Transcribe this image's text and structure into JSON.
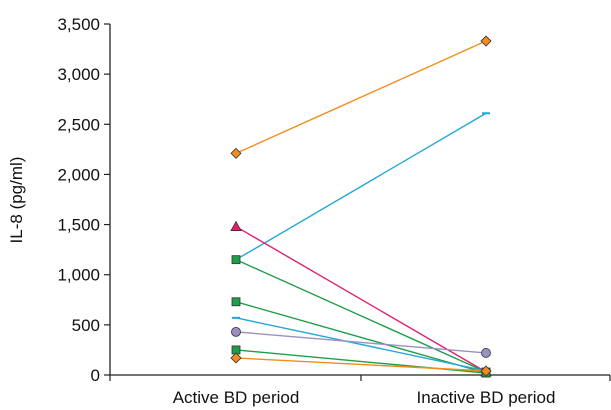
{
  "chart_data": {
    "type": "line",
    "title": "",
    "xlabel": "",
    "ylabel": "IL-8 (pg/ml)",
    "categories": [
      "Active BD period",
      "Inactive BD period"
    ],
    "ylim": [
      0,
      3500
    ],
    "yticks": [
      0,
      500,
      1000,
      1500,
      2000,
      2500,
      3000,
      3500
    ],
    "ytick_labels": [
      "0",
      "500",
      "1,000",
      "1,500",
      "2,000",
      "2,500",
      "3,000",
      "3,500"
    ],
    "grid": false,
    "legend": "none",
    "series": [
      {
        "values": [
          2210,
          3330
        ],
        "color": "#F28C1E",
        "marker": "diamond"
      },
      {
        "values": [
          1150,
          2610
        ],
        "color": "#22A7D8",
        "marker": "dash"
      },
      {
        "values": [
          1480,
          30
        ],
        "color": "#E0206E",
        "marker": "triangle"
      },
      {
        "values": [
          1150,
          30
        ],
        "color": "#1E9E4A",
        "marker": "square"
      },
      {
        "values": [
          730,
          20
        ],
        "color": "#1E9E4A",
        "marker": "square"
      },
      {
        "values": [
          570,
          40
        ],
        "color": "#22A7D8",
        "marker": "dash"
      },
      {
        "values": [
          430,
          220
        ],
        "color": "#9B8FC2",
        "marker": "circle"
      },
      {
        "values": [
          250,
          20
        ],
        "color": "#1E9E4A",
        "marker": "square"
      },
      {
        "values": [
          170,
          40
        ],
        "color": "#F28C1E",
        "marker": "diamond"
      }
    ]
  }
}
